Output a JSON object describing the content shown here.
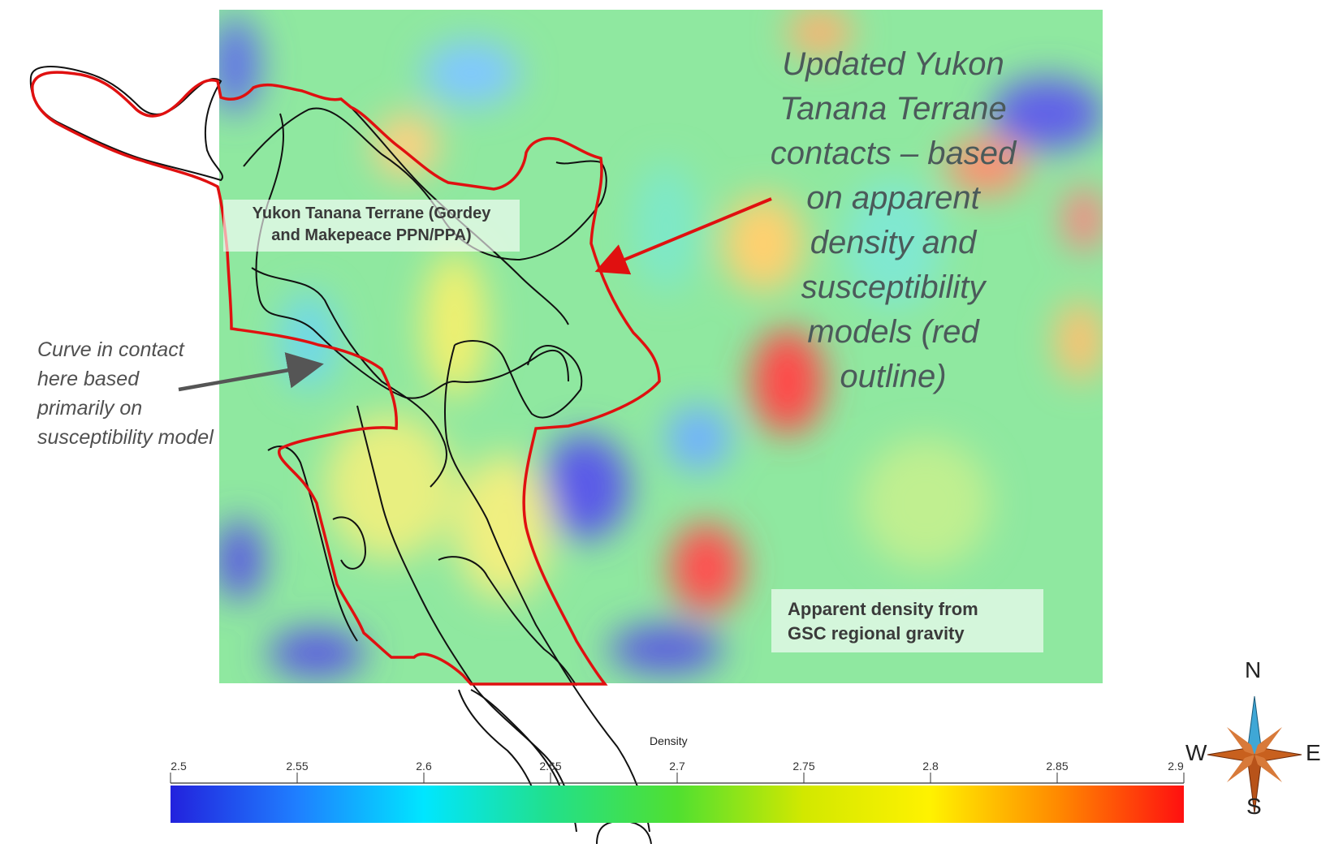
{
  "annotations": {
    "updated_contacts": "Updated Yukon\nTanana Terrane\ncontacts – based\non apparent\ndensity and\nsusceptibility\nmodels (red\noutline)",
    "curve_note": "Curve in contact\nhere based\nprimarily on\nsusceptibility model"
  },
  "labels": {
    "terrane": "Yukon Tanana Terrane (Gordey\nand Makepeace PPN/PPA)",
    "density_source": "Apparent density from\nGSC regional gravity"
  },
  "colorbar": {
    "title": "Density",
    "ticks": [
      "2.5",
      "2.55",
      "2.6",
      "2.65",
      "2.7",
      "2.75",
      "2.8",
      "2.85",
      "2.9"
    ],
    "colors": [
      "#2222dd",
      "#1f7fff",
      "#00e6ff",
      "#22e08a",
      "#50e030",
      "#d2e800",
      "#fff200",
      "#ff8a00",
      "#ff1010"
    ]
  },
  "compass": {
    "n": "N",
    "s": "S",
    "e": "E",
    "w": "W"
  },
  "colors": {
    "outline_updated": "#e01010",
    "outline_original": "#111111",
    "arrow_red": "#e01010",
    "arrow_grey": "#555555"
  }
}
